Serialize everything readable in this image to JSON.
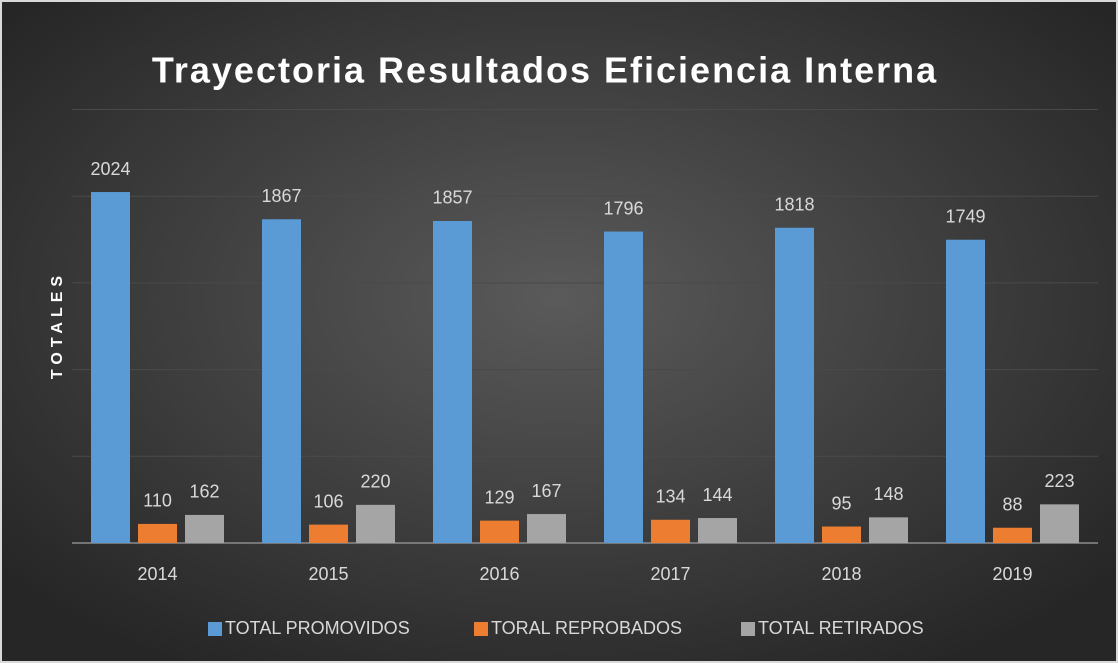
{
  "chart_data": {
    "type": "bar",
    "title": "Trayectoria Resultados Eficiencia Interna",
    "y_label": "TOTALES",
    "categories": [
      "2014",
      "2015",
      "2016",
      "2017",
      "2018",
      "2019"
    ],
    "series": [
      {
        "name": "TOTAL PROMOVIDOS",
        "color": "#5b9bd5",
        "values": [
          2024,
          1867,
          1857,
          1796,
          1818,
          1749
        ]
      },
      {
        "name": "TORAL REPROBADOS",
        "color": "#ed7d31",
        "values": [
          110,
          106,
          129,
          134,
          95,
          88
        ]
      },
      {
        "name": "TOTAL RETIRADOS",
        "color": "#a5a5a5",
        "values": [
          162,
          220,
          167,
          144,
          148,
          223
        ]
      }
    ],
    "ylim": [
      0,
      2500
    ],
    "yticks": [
      0,
      500,
      1000,
      1500,
      2000,
      2500
    ],
    "grid": true,
    "legend": "bottom"
  }
}
